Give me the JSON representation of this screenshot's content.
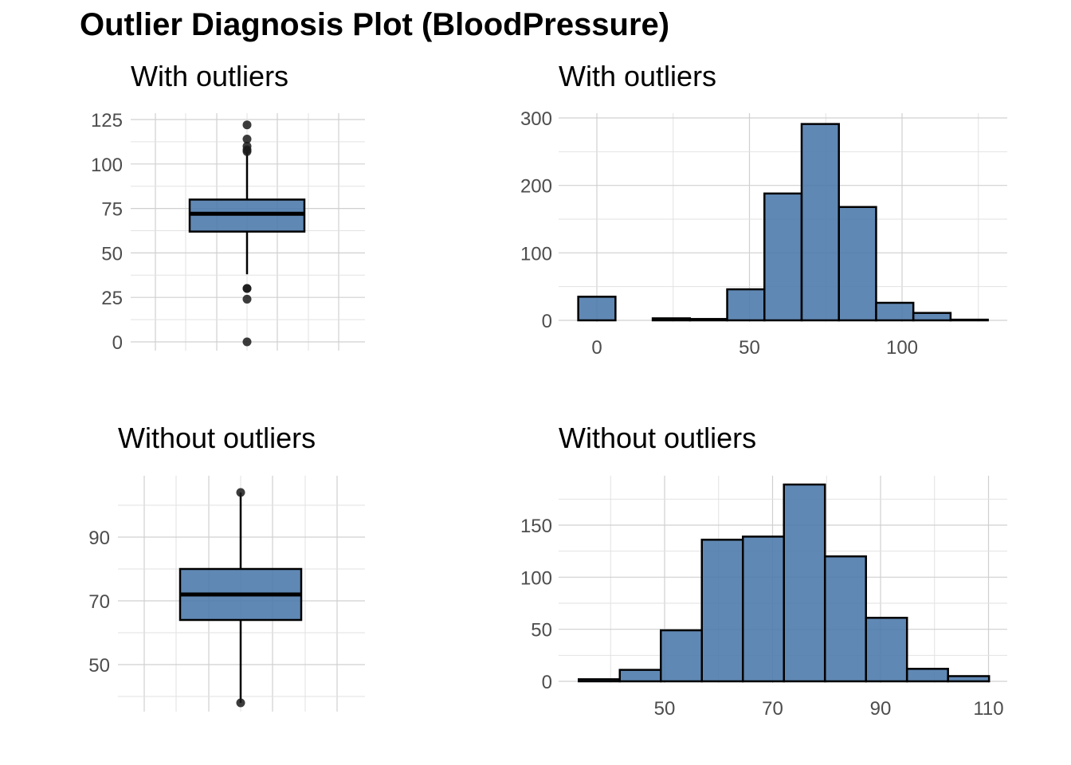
{
  "title": "Outlier Diagnosis Plot (BloodPressure)",
  "colors": {
    "fill": "#4a78aa",
    "outline": "#000000",
    "grid": "#d0d0d0",
    "tick_text": "#4d4d4d"
  },
  "chart_data": [
    {
      "type": "box",
      "title": "With outliers",
      "ylim": [
        0,
        125
      ],
      "yticks": [
        "0",
        "25",
        "50",
        "75",
        "100",
        "125"
      ],
      "q1": 62,
      "median": 72,
      "q3": 80,
      "whisker_low": 38,
      "whisker_high": 107,
      "outliers": [
        122,
        114,
        110,
        108,
        107,
        30,
        30,
        24,
        0
      ],
      "grid": true
    },
    {
      "type": "bar",
      "title": "With outliers",
      "xlim": [
        -13,
        134
      ],
      "ylim": [
        0,
        300
      ],
      "xticks": [
        "0",
        "50",
        "100"
      ],
      "yticks": [
        "0",
        "100",
        "200",
        "300"
      ],
      "bins": [
        {
          "x0": -6.1,
          "x1": 6.1,
          "count": 35
        },
        {
          "x0": 6.1,
          "x1": 18.3,
          "count": 0
        },
        {
          "x0": 18.3,
          "x1": 30.5,
          "count": 3
        },
        {
          "x0": 30.5,
          "x1": 42.7,
          "count": 2
        },
        {
          "x0": 42.7,
          "x1": 54.9,
          "count": 46
        },
        {
          "x0": 54.9,
          "x1": 67.1,
          "count": 188
        },
        {
          "x0": 67.1,
          "x1": 79.3,
          "count": 291
        },
        {
          "x0": 79.3,
          "x1": 91.5,
          "count": 168
        },
        {
          "x0": 91.5,
          "x1": 103.7,
          "count": 26
        },
        {
          "x0": 103.7,
          "x1": 115.9,
          "count": 11
        },
        {
          "x0": 115.9,
          "x1": 128.1,
          "count": 1
        }
      ],
      "grid": true
    },
    {
      "type": "box",
      "title": "Without outliers",
      "ylim": [
        37,
        106
      ],
      "yticks": [
        "50",
        "70",
        "90"
      ],
      "q1": 64,
      "median": 72,
      "q3": 80,
      "whisker_low": 38,
      "whisker_high": 104,
      "outliers": [
        104,
        38
      ],
      "grid": true
    },
    {
      "type": "bar",
      "title": "Without outliers",
      "xlim": [
        32,
        114
      ],
      "ylim": [
        0,
        190
      ],
      "xticks": [
        "50",
        "70",
        "90",
        "110"
      ],
      "yticks": [
        "0",
        "50",
        "100",
        "150"
      ],
      "bins": [
        {
          "x0": 34.1,
          "x1": 41.7,
          "count": 2
        },
        {
          "x0": 41.7,
          "x1": 49.3,
          "count": 11
        },
        {
          "x0": 49.3,
          "x1": 56.9,
          "count": 49
        },
        {
          "x0": 56.9,
          "x1": 64.5,
          "count": 136
        },
        {
          "x0": 64.5,
          "x1": 72.1,
          "count": 139
        },
        {
          "x0": 72.1,
          "x1": 79.7,
          "count": 189
        },
        {
          "x0": 79.7,
          "x1": 87.3,
          "count": 120
        },
        {
          "x0": 87.3,
          "x1": 94.9,
          "count": 61
        },
        {
          "x0": 94.9,
          "x1": 102.5,
          "count": 12
        },
        {
          "x0": 102.5,
          "x1": 110.1,
          "count": 5
        }
      ],
      "grid": true
    }
  ]
}
